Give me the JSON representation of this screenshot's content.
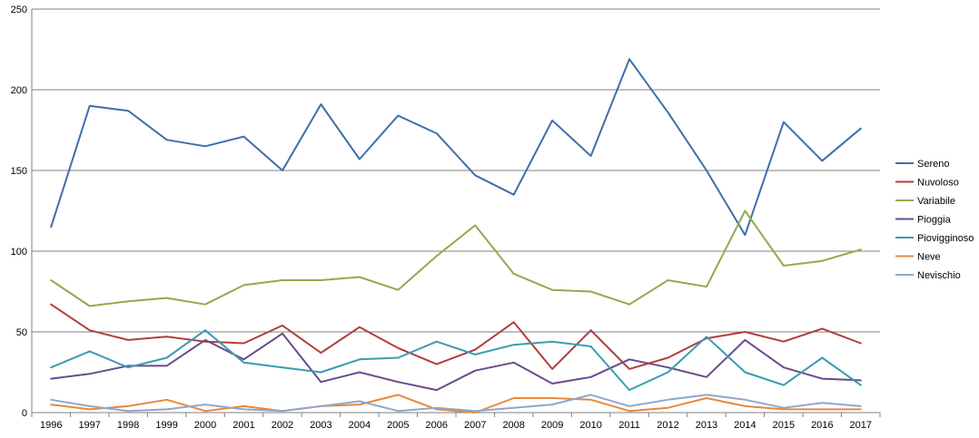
{
  "chart_data": {
    "type": "line",
    "title": "",
    "xlabel": "",
    "ylabel": "",
    "ylim": [
      0,
      250
    ],
    "yticks": [
      0,
      50,
      100,
      150,
      200,
      250
    ],
    "grid": "horizontal",
    "legend_position": "right",
    "categories": [
      "1996",
      "1997",
      "1998",
      "1999",
      "2000",
      "2001",
      "2002",
      "2003",
      "2004",
      "2005",
      "2006",
      "2007",
      "2008",
      "2009",
      "2010",
      "2011",
      "2012",
      "2013",
      "2014",
      "2015",
      "2016",
      "2017"
    ],
    "series": [
      {
        "name": "Sereno",
        "color": "#3f6ea8",
        "values": [
          115,
          190,
          187,
          169,
          165,
          171,
          150,
          191,
          157,
          184,
          173,
          147,
          135,
          181,
          159,
          219,
          186,
          150,
          110,
          180,
          156,
          176
        ]
      },
      {
        "name": "Nuvoloso",
        "color": "#b03e3b",
        "values": [
          67,
          51,
          45,
          47,
          44,
          43,
          54,
          37,
          53,
          40,
          30,
          39,
          56,
          27,
          51,
          27,
          34,
          46,
          50,
          44,
          52,
          43
        ]
      },
      {
        "name": "Variabile",
        "color": "#8fac4d",
        "values": [
          82,
          66,
          69,
          71,
          67,
          79,
          82,
          82,
          84,
          76,
          97,
          116,
          86,
          76,
          75,
          67,
          82,
          78,
          125,
          91,
          94,
          101
        ]
      },
      {
        "name": "Pioggia",
        "color": "#6b4a8c",
        "values": [
          21,
          24,
          29,
          29,
          45,
          33,
          49,
          19,
          25,
          19,
          14,
          26,
          31,
          18,
          22,
          33,
          28,
          22,
          45,
          28,
          21,
          20
        ]
      },
      {
        "name": "Piovigginoso",
        "color": "#3a9bb3",
        "values": [
          28,
          38,
          28,
          34,
          51,
          31,
          28,
          25,
          33,
          34,
          44,
          36,
          42,
          44,
          41,
          14,
          25,
          47,
          25,
          17,
          34,
          17
        ]
      },
      {
        "name": "Neve",
        "color": "#e8883a",
        "values": [
          5,
          2,
          4,
          8,
          1,
          4,
          1,
          4,
          5,
          11,
          2,
          0,
          9,
          9,
          8,
          1,
          3,
          9,
          4,
          2,
          2,
          2
        ]
      },
      {
        "name": "Nevischio",
        "color": "#8fa8cc",
        "values": [
          8,
          4,
          1,
          2,
          5,
          2,
          1,
          4,
          7,
          1,
          3,
          1,
          3,
          5,
          11,
          4,
          8,
          11,
          8,
          3,
          6,
          4
        ]
      }
    ]
  }
}
